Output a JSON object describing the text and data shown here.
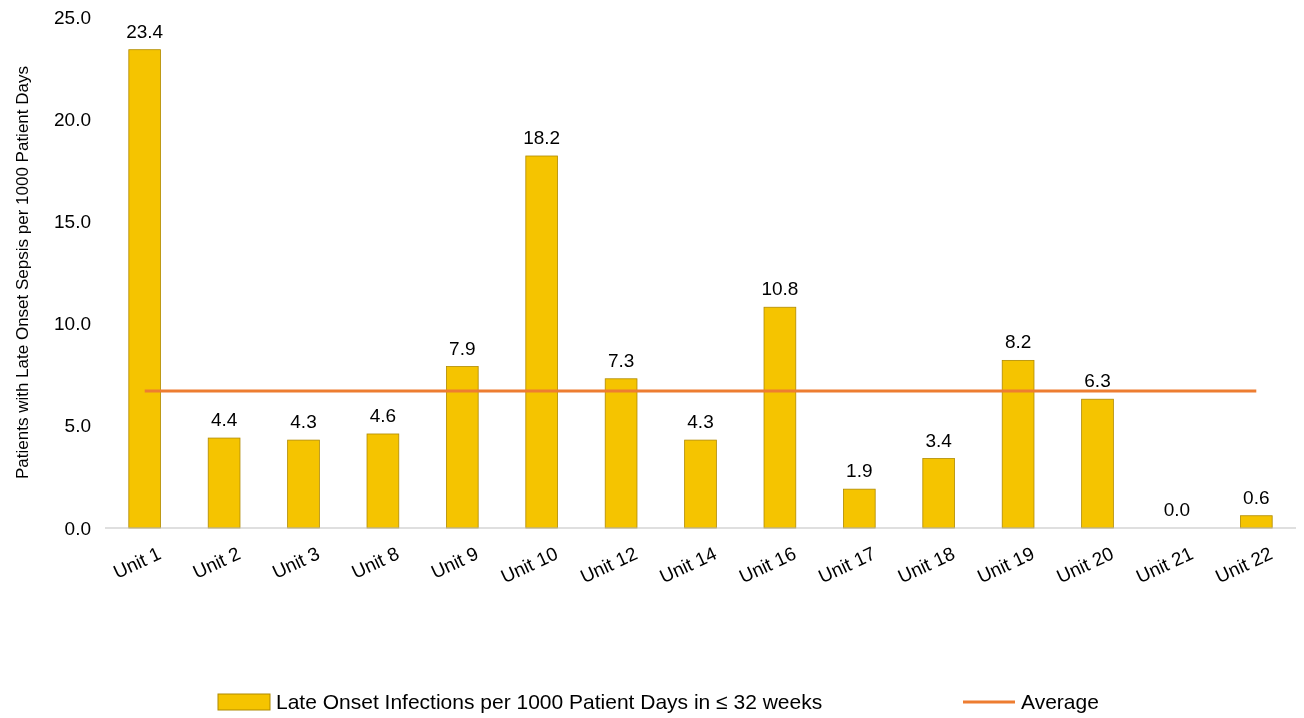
{
  "chart_data": {
    "type": "bar",
    "ylabel": "Patients with Late Onset Sepsis per 1000 Patient Days",
    "categories": [
      "Unit 1",
      "Unit 2",
      "Unit 3",
      "Unit 8",
      "Unit 9",
      "Unit 10",
      "Unit 12",
      "Unit 14",
      "Unit 16",
      "Unit 17",
      "Unit 18",
      "Unit 19",
      "Unit 20",
      "Unit 21",
      "Unit 22"
    ],
    "series": [
      {
        "name": "Late Onset Infections per 1000 Patient Days in ≤ 32 weeks",
        "color": "#f5c400",
        "values": [
          23.4,
          4.4,
          4.3,
          4.6,
          7.9,
          18.2,
          7.3,
          4.3,
          10.8,
          1.9,
          3.4,
          8.2,
          6.3,
          0.0,
          0.6
        ],
        "value_labels": [
          "23.4",
          "4.4",
          "4.3",
          "4.6",
          "7.9",
          "18.2",
          "7.3",
          "4.3",
          "10.8",
          "1.9",
          "3.4",
          "8.2",
          "6.3",
          "0.0",
          "0.6"
        ]
      },
      {
        "name": "Average",
        "type": "line",
        "color": "#ed7d31",
        "values": [
          6.7,
          6.7,
          6.7,
          6.7,
          6.7,
          6.7,
          6.7,
          6.7,
          6.7,
          6.7,
          6.7,
          6.7,
          6.7,
          6.7,
          6.7
        ]
      }
    ],
    "ylim": [
      0,
      25
    ],
    "yticks": [
      {
        "value": 0,
        "label": "0.0"
      },
      {
        "value": 5,
        "label": "5.0"
      },
      {
        "value": 10,
        "label": "10.0"
      },
      {
        "value": 15,
        "label": "15.0"
      },
      {
        "value": 20,
        "label": "20.0"
      },
      {
        "value": 25,
        "label": "25.0"
      }
    ],
    "grid": false,
    "legend": "bottom"
  }
}
